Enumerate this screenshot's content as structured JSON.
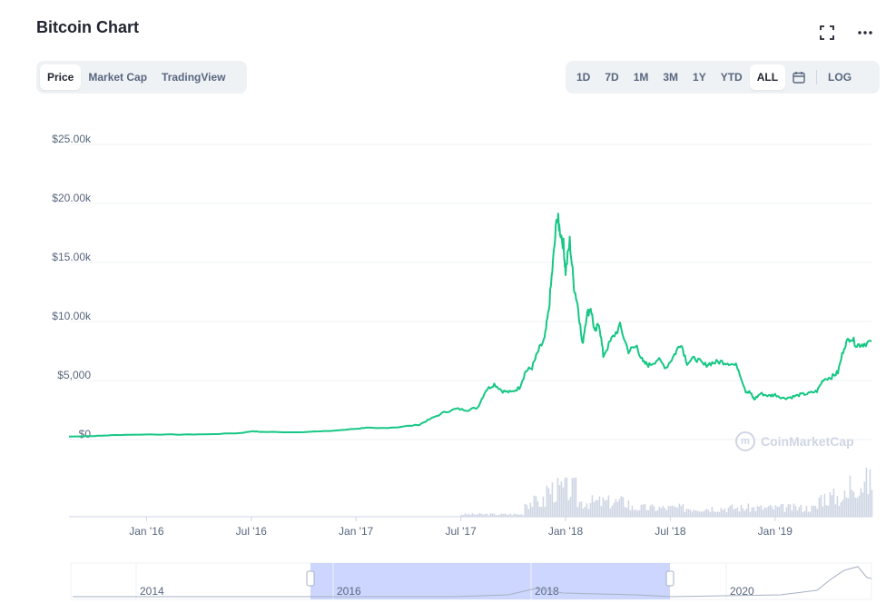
{
  "header": {
    "title": "Bitcoin Chart"
  },
  "icons": {
    "fullscreen": "fullscreen-icon",
    "more": "more-icon",
    "calendar": "calendar-icon",
    "logo": "coinmarketcap-logo-icon"
  },
  "tabs": [
    {
      "label": "Price",
      "active": true
    },
    {
      "label": "Market Cap",
      "active": false
    },
    {
      "label": "TradingView",
      "active": false
    }
  ],
  "ranges": [
    {
      "label": "1D",
      "active": false
    },
    {
      "label": "7D",
      "active": false
    },
    {
      "label": "1M",
      "active": false
    },
    {
      "label": "3M",
      "active": false
    },
    {
      "label": "1Y",
      "active": false
    },
    {
      "label": "YTD",
      "active": false
    },
    {
      "label": "ALL",
      "active": true
    }
  ],
  "log_label": "LOG",
  "watermark": "CoinMarketCap",
  "colors": {
    "line": "#16c784",
    "volume": "#cfd6e4",
    "navigator_selection": "#c7d2fe",
    "grid": "#eff2f5",
    "text": "#58667e"
  },
  "chart_data": {
    "type": "line",
    "title": "",
    "xlabel": "",
    "ylabel": "",
    "ylim": [
      0,
      25000
    ],
    "y_ticks": [
      0,
      5000,
      10000,
      15000,
      20000,
      25000
    ],
    "y_tick_labels": [
      "$0",
      "$5,000",
      "$10.00k",
      "$15.00k",
      "$20.00k",
      "$25.00k"
    ],
    "x_tick_labels": [
      "Jan '16",
      "Jul '16",
      "Jan '17",
      "Jul '17",
      "Jan '18",
      "Jul '18",
      "Jan '19"
    ],
    "x_ticks_years": [
      2016.0,
      2016.5,
      2017.0,
      2017.5,
      2018.0,
      2018.5,
      2019.0
    ],
    "xlim_years": [
      2015.63,
      2019.46
    ],
    "grid": true,
    "series": [
      {
        "x": [
          2015.63,
          2015.75,
          2015.85,
          2016.0,
          2016.15,
          2016.3,
          2016.45,
          2016.5,
          2016.55,
          2016.7,
          2016.85,
          2017.0,
          2017.04,
          2017.1,
          2017.2,
          2017.3,
          2017.35,
          2017.42,
          2017.48,
          2017.53,
          2017.58,
          2017.62,
          2017.66,
          2017.7,
          2017.74,
          2017.78,
          2017.81,
          2017.84,
          2017.87,
          2017.9,
          2017.92,
          2017.94,
          2017.96,
          2017.97,
          2017.99,
          2018.0,
          2018.02,
          2018.04,
          2018.06,
          2018.08,
          2018.1,
          2018.12,
          2018.14,
          2018.16,
          2018.18,
          2018.22,
          2018.26,
          2018.3,
          2018.34,
          2018.37,
          2018.4,
          2018.44,
          2018.48,
          2018.52,
          2018.55,
          2018.58,
          2018.62,
          2018.66,
          2018.7,
          2018.74,
          2018.78,
          2018.82,
          2018.86,
          2018.88,
          2018.9,
          2018.93,
          2018.97,
          2019.0,
          2019.04,
          2019.08,
          2019.12,
          2019.16,
          2019.2,
          2019.23,
          2019.27,
          2019.3,
          2019.33,
          2019.36,
          2019.39,
          2019.42,
          2019.46
        ],
        "y": [
          250,
          300,
          380,
          430,
          420,
          450,
          550,
          700,
          650,
          620,
          700,
          900,
          1000,
          950,
          1050,
          1250,
          1700,
          2300,
          2600,
          2500,
          2700,
          4200,
          4700,
          4100,
          4000,
          4400,
          5800,
          6100,
          7500,
          8500,
          11000,
          15000,
          19000,
          18000,
          16500,
          14200,
          16800,
          13000,
          11200,
          8000,
          10500,
          11200,
          9000,
          9900,
          7100,
          8500,
          9600,
          7500,
          7900,
          6500,
          6300,
          6800,
          6100,
          7200,
          8200,
          6500,
          6900,
          6300,
          6500,
          6600,
          6500,
          6200,
          4100,
          4000,
          3400,
          3900,
          3700,
          3800,
          3500,
          3600,
          3800,
          3900,
          4100,
          5100,
          5300,
          5700,
          7900,
          8700,
          8000,
          8100,
          8300
        ]
      }
    ],
    "volume_note": "Volume bars shown without axis",
    "navigator": {
      "year_labels": [
        "2014",
        "2016",
        "2018",
        "2020"
      ],
      "selection": [
        "Jul '15",
        "Jun '19"
      ]
    }
  }
}
